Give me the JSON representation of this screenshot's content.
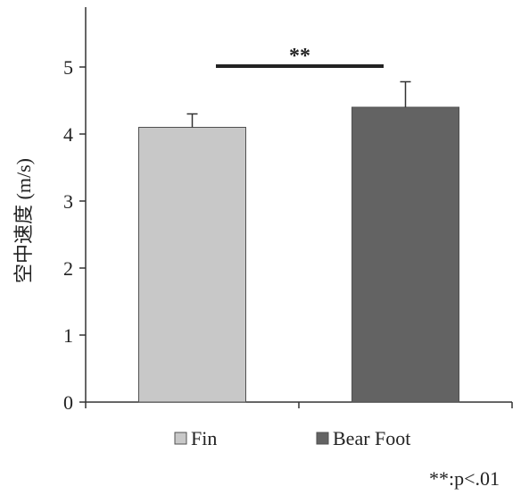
{
  "chart_data": {
    "type": "bar",
    "categories": [
      "Fin",
      "Bear Foot"
    ],
    "values": [
      4.1,
      4.4
    ],
    "errors": [
      0.2,
      0.38
    ],
    "colors": [
      "#c8c8c8",
      "#636363"
    ],
    "edge_color": "#505050",
    "ylabel": "空中速度 (m/s)",
    "xlabel": "",
    "ylim": [
      0,
      5.8
    ],
    "yticks": [
      0,
      1,
      2,
      3,
      4,
      5
    ],
    "grid": false,
    "legend": {
      "placement": "bottom-center",
      "entries": [
        "Fin",
        "Bear Foot"
      ]
    },
    "significance": {
      "between": [
        "Fin",
        "Bear Foot"
      ],
      "label": "**",
      "y": 5.0
    },
    "note": "**:p<.01"
  }
}
